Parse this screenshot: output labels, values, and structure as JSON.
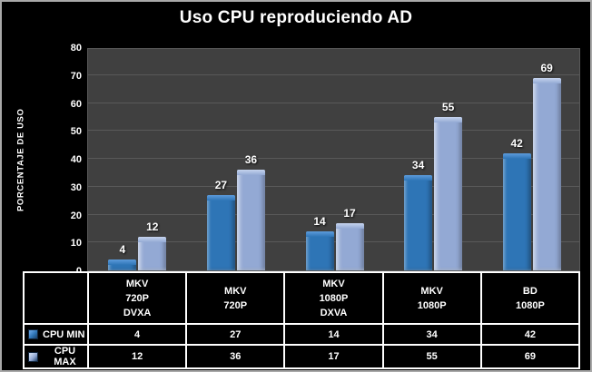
{
  "window": {
    "background": "#000000",
    "border_color": "#a9a9a9"
  },
  "chart_data": {
    "type": "bar",
    "title": "Uso CPU reproduciendo AD",
    "xlabel": "",
    "ylabel": "PORCENTAJE DE USO",
    "ylim": [
      0,
      80
    ],
    "yticks": [
      0,
      10,
      20,
      30,
      40,
      50,
      60,
      70,
      80
    ],
    "grid": true,
    "legend_position": "table-left",
    "categories": [
      [
        "MKV",
        "720P",
        "DVXA"
      ],
      [
        "MKV",
        "720P"
      ],
      [
        "MKV",
        "1080P",
        "DXVA"
      ],
      [
        "MKV",
        "1080P"
      ],
      [
        "BD",
        "1080P"
      ]
    ],
    "series": [
      {
        "name": "CPU MIN",
        "values": [
          4,
          27,
          14,
          34,
          42
        ],
        "color": "#2e75b6",
        "bevel_color": "#5d9bdb"
      },
      {
        "name": "CPU MAX",
        "values": [
          12,
          36,
          17,
          55,
          69
        ],
        "color": "#93a9d4",
        "bevel_color": "#c6d4ee"
      }
    ],
    "colors": {
      "plot_bg": "#404040",
      "gridline": "#595959",
      "text": "#ffffff",
      "table_border": "#ffffff"
    }
  }
}
